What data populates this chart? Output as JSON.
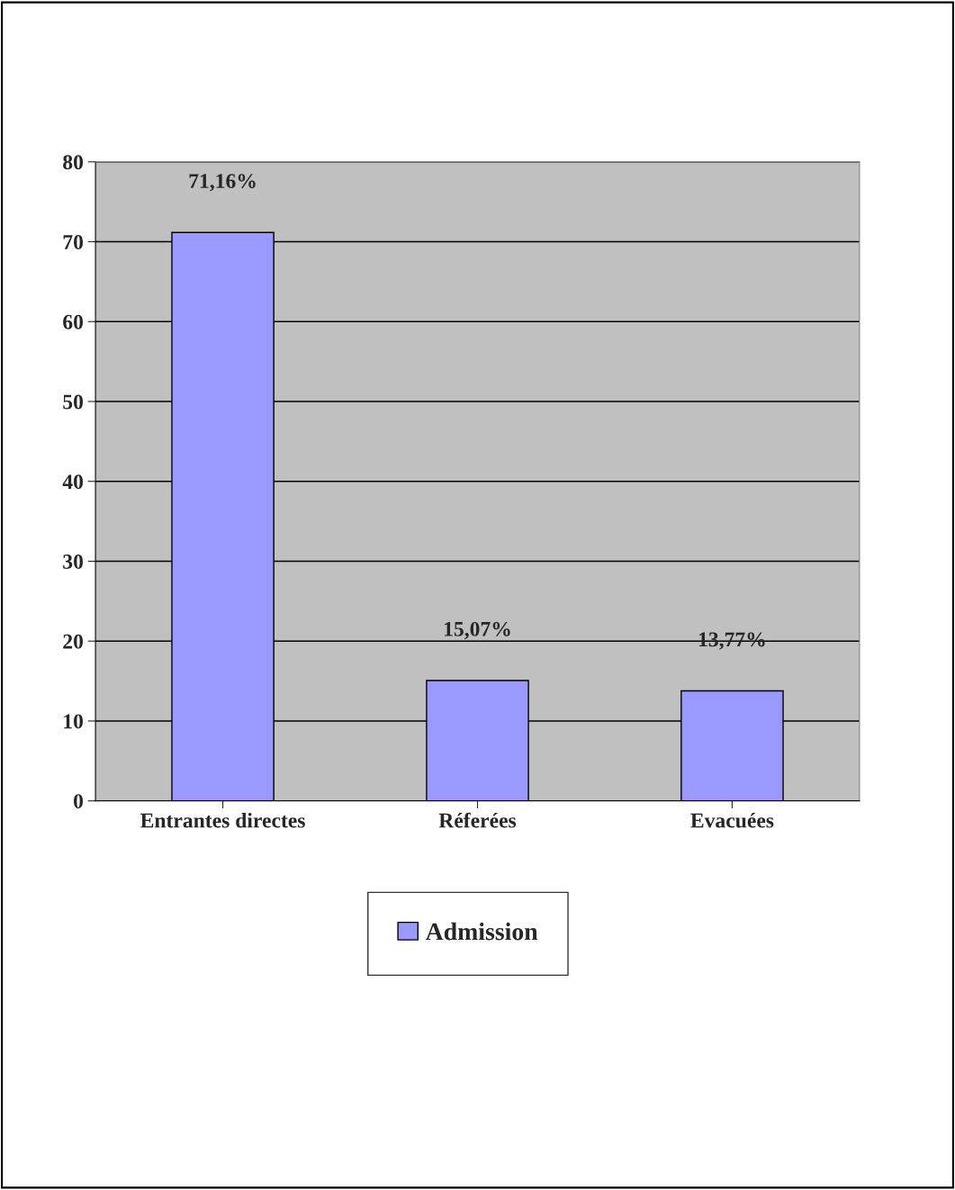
{
  "chart_data": {
    "type": "bar",
    "categories": [
      "Entrantes directes",
      "Réferées",
      "Evacuées"
    ],
    "series": [
      {
        "name": "Admission",
        "color": "#9999ff",
        "values": [
          71.16,
          15.07,
          13.77
        ],
        "value_labels": [
          "71,16%",
          "15,07%",
          "13,77%"
        ]
      }
    ],
    "ylim": [
      0,
      80
    ],
    "yticks": [
      0,
      10,
      20,
      30,
      40,
      50,
      60,
      70,
      80
    ],
    "grid": "y",
    "legend": "bottom"
  }
}
